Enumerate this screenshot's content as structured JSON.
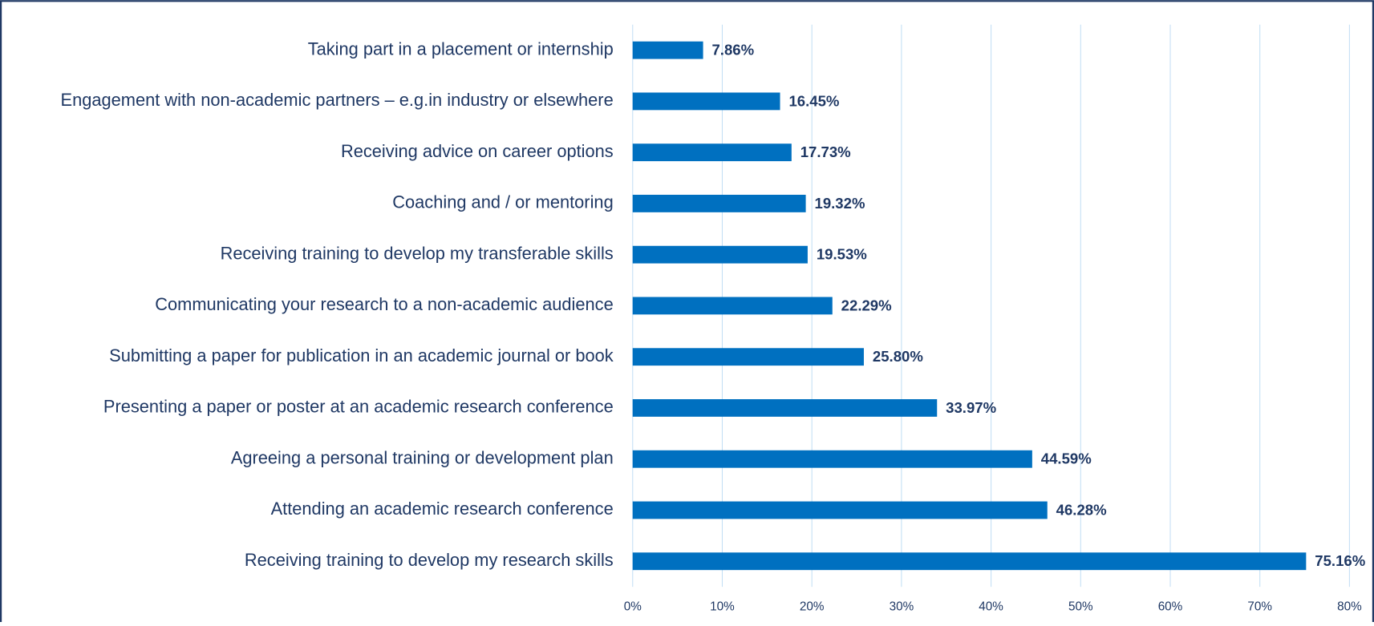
{
  "chart_data": {
    "type": "barh",
    "categories": [
      "Taking part in a placement or internship",
      "Engagement with non-academic partners – e.g.in industry or elsewhere",
      "Receiving advice on career options",
      "Coaching and / or mentoring",
      "Receiving training to develop my transferable skills",
      "Communicating your research to a non-academic audience",
      "Submitting a paper for publication in an academic journal or book",
      "Presenting a paper or poster at an academic research conference",
      "Agreeing a personal training or development plan",
      "Attending an academic research conference",
      "Receiving training to develop my research skills"
    ],
    "values": [
      7.86,
      16.45,
      17.73,
      19.32,
      19.53,
      22.29,
      25.8,
      33.97,
      44.59,
      46.28,
      75.16
    ],
    "value_labels": [
      "7.86%",
      "16.45%",
      "17.73%",
      "19.32%",
      "19.53%",
      "22.29%",
      "25.80%",
      "33.97%",
      "44.59%",
      "46.28%",
      "75.16%"
    ],
    "color": "#0070c0",
    "xlim": [
      0,
      80
    ],
    "xticks": [
      {
        "value": 0,
        "label": "0%"
      },
      {
        "value": 10,
        "label": "10%"
      },
      {
        "value": 20,
        "label": "20%"
      },
      {
        "value": 30,
        "label": "30%"
      },
      {
        "value": 40,
        "label": "40%"
      },
      {
        "value": 50,
        "label": "50%"
      },
      {
        "value": 60,
        "label": "60%"
      },
      {
        "value": 70,
        "label": "70%"
      },
      {
        "value": 80,
        "label": "80%"
      }
    ],
    "grid": true
  }
}
